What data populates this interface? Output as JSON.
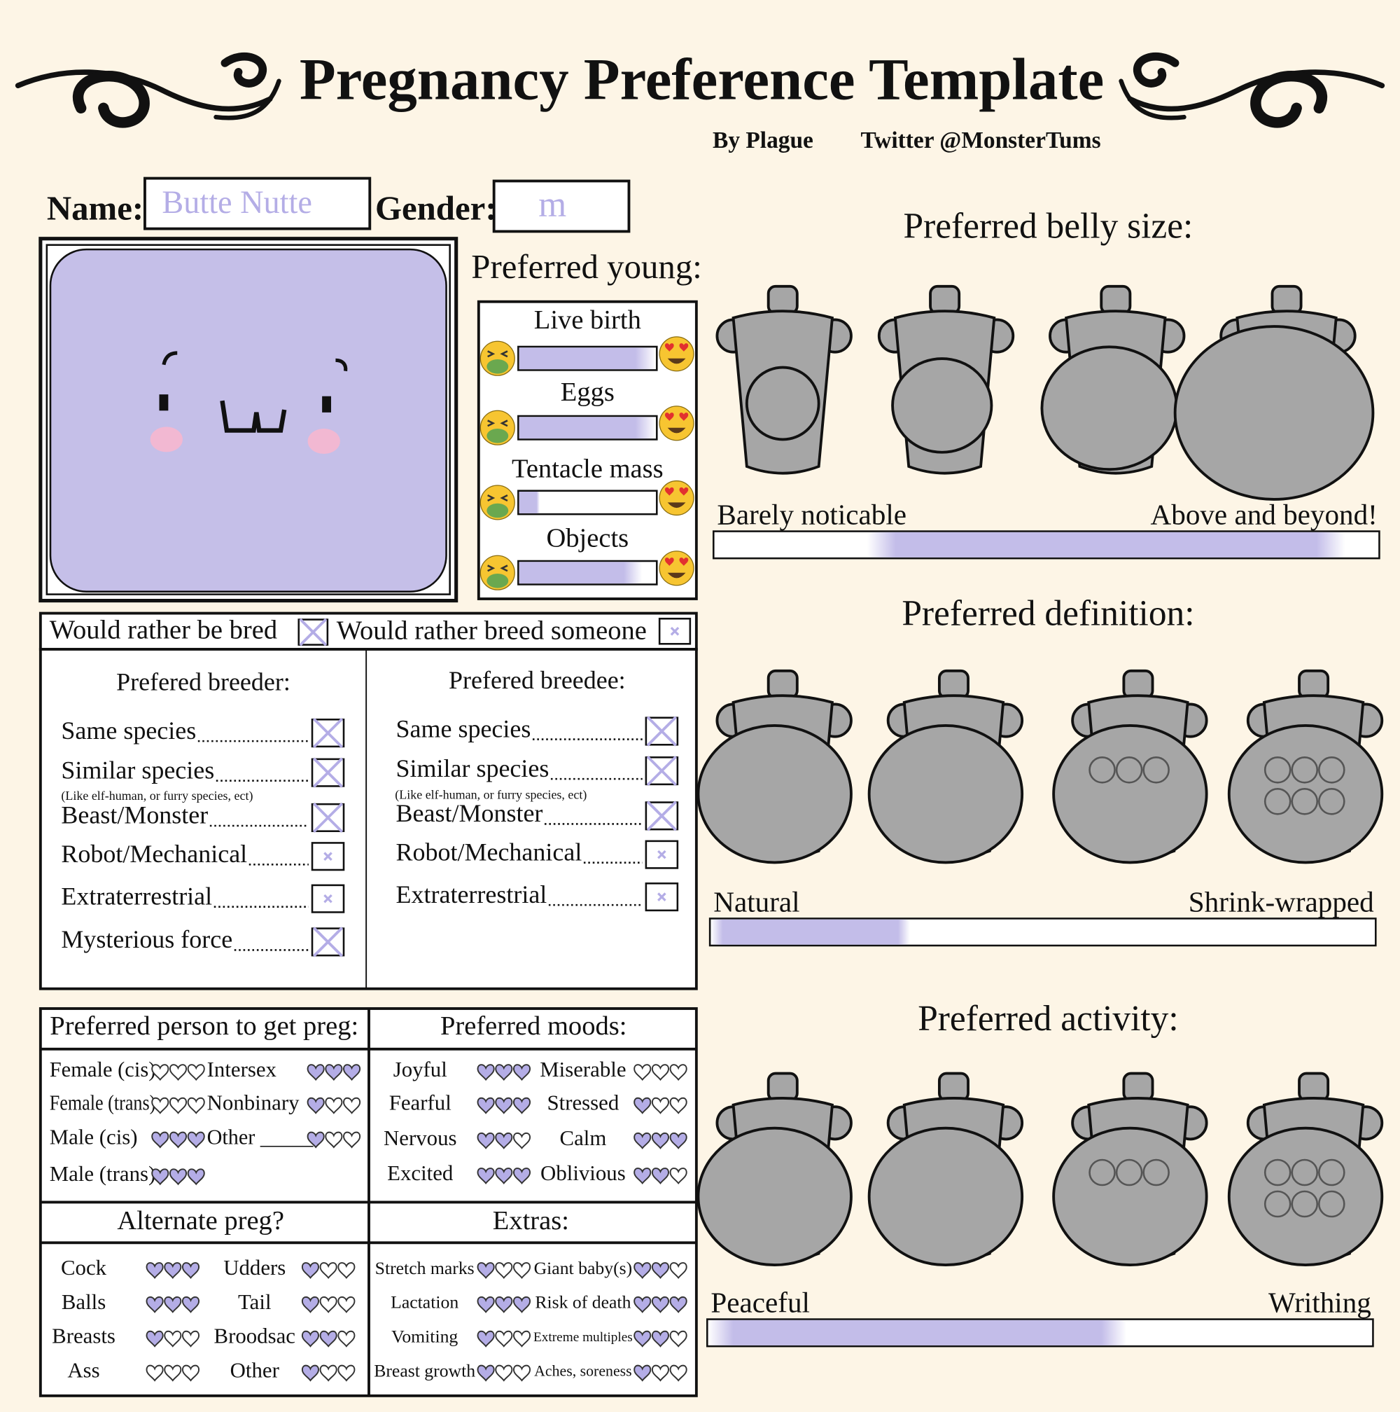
{
  "header": {
    "title": "Pregnancy Preference Template",
    "credit": "By Plague",
    "twitter": "Twitter @MonsterTums"
  },
  "form": {
    "name_label": "Name:",
    "name_value": "Butte Nutte",
    "gender_label": "Gender:",
    "gender_value": "m"
  },
  "young": {
    "title": "Preferred young:",
    "items": [
      {
        "label": "Live birth",
        "level": 100
      },
      {
        "label": "Eggs",
        "level": 100
      },
      {
        "label": "Tentacle mass",
        "level": 15
      },
      {
        "label": "Objects",
        "level": 90
      }
    ]
  },
  "belly_size": {
    "title": "Preferred belly size:",
    "low": "Barely noticable",
    "high": "Above and beyond!",
    "range": [
      23,
      95
    ]
  },
  "definition": {
    "title": "Preferred definition:",
    "low": "Natural",
    "high": "Shrink-wrapped",
    "range": [
      0,
      30
    ]
  },
  "activity": {
    "title": "Preferred activity:",
    "low": "Peaceful",
    "high": "Writhing",
    "range": [
      0,
      63
    ]
  },
  "role": {
    "bred_label": "Would rather be bred",
    "bred_checked": true,
    "breed_label": "Would rather breed someone",
    "breed_checked": false
  },
  "breeder": {
    "title": "Prefered breeder:",
    "note": "(Like elf-human, or furry species, ect)",
    "items": [
      {
        "label": "Same species",
        "checked": true
      },
      {
        "label": "Similar species",
        "checked": true
      },
      {
        "label": "Beast/Monster",
        "checked": true
      },
      {
        "label": "Robot/Mechanical",
        "checked": false
      },
      {
        "label": "Extraterrestrial",
        "checked": false
      },
      {
        "label": "Mysterious force",
        "checked": true
      }
    ]
  },
  "breedee": {
    "title": "Prefered breedee:",
    "note": "(Like elf-human, or furry species, ect)",
    "items": [
      {
        "label": "Same species",
        "checked": true
      },
      {
        "label": "Similar species",
        "checked": true
      },
      {
        "label": "Beast/Monster",
        "checked": true
      },
      {
        "label": "Robot/Mechanical",
        "checked": false
      },
      {
        "label": "Extraterrestrial",
        "checked": false
      }
    ]
  },
  "person": {
    "title": "Preferred person to get preg:",
    "items": [
      {
        "label": "Female (cis)",
        "hearts": 0
      },
      {
        "label": "Intersex",
        "hearts": 3
      },
      {
        "label": "Female (trans)",
        "hearts": 0
      },
      {
        "label": "Nonbinary",
        "hearts": 1
      },
      {
        "label": "Male (cis)",
        "hearts": 3
      },
      {
        "label": "Other _____",
        "hearts": 1
      },
      {
        "label": "Male (trans)",
        "hearts": 3
      }
    ]
  },
  "moods": {
    "title": "Preferred moods:",
    "items": [
      {
        "label": "Joyful",
        "hearts": 3
      },
      {
        "label": "Miserable",
        "hearts": 0
      },
      {
        "label": "Fearful",
        "hearts": 3
      },
      {
        "label": "Stressed",
        "hearts": 1
      },
      {
        "label": "Nervous",
        "hearts": 2
      },
      {
        "label": "Calm",
        "hearts": 3
      },
      {
        "label": "Excited",
        "hearts": 3
      },
      {
        "label": "Oblivious",
        "hearts": 2
      }
    ]
  },
  "alternate": {
    "title": "Alternate preg?",
    "items": [
      {
        "label": "Cock",
        "hearts": 3
      },
      {
        "label": "Udders",
        "hearts": 1
      },
      {
        "label": "Balls",
        "hearts": 3
      },
      {
        "label": "Tail",
        "hearts": 1
      },
      {
        "label": "Breasts",
        "hearts": 1
      },
      {
        "label": "Broodsac",
        "hearts": 2
      },
      {
        "label": "Ass",
        "hearts": 0
      },
      {
        "label": "Other",
        "hearts": 1
      }
    ]
  },
  "extras": {
    "title": "Extras:",
    "items": [
      {
        "label": "Stretch marks",
        "hearts": 1
      },
      {
        "label": "Giant baby(s)",
        "hearts": 2
      },
      {
        "label": "Lactation",
        "hearts": 3
      },
      {
        "label": "Risk of death",
        "hearts": 3
      },
      {
        "label": "Vomiting",
        "hearts": 1
      },
      {
        "label": "Extreme multiples",
        "hearts": 2
      },
      {
        "label": "Breast growth",
        "hearts": 1
      },
      {
        "label": "Aches, soreness",
        "hearts": 1
      }
    ]
  }
}
